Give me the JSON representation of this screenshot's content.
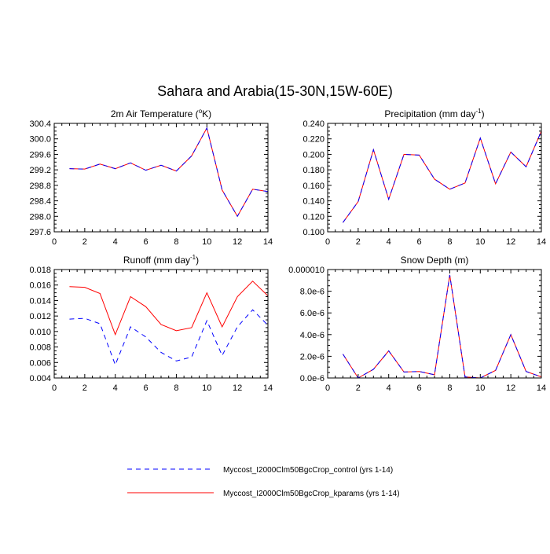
{
  "figure": {
    "title": "Sahara and Arabia(15-30N,15W-60E)"
  },
  "legend": {
    "placement": "bottom",
    "entries": [
      {
        "label": "Myccost_I2000Clm50BgcCrop_control (yrs 1-14)",
        "color": "#0000ff",
        "style": "dashed"
      },
      {
        "label": "Myccost_I2000Clm50BgcCrop_kparams (yrs 1-14)",
        "color": "#ff0000",
        "style": "solid"
      }
    ]
  },
  "chart_data": [
    {
      "type": "line",
      "title": "2m Air Temperature (",
      "title_sup": "o",
      "title_tail": "K)",
      "xlim": [
        0,
        14
      ],
      "ylim": [
        297.6,
        300.4
      ],
      "xticks": [
        0,
        2,
        4,
        6,
        8,
        10,
        12,
        14
      ],
      "yticks": [
        297.6,
        298.0,
        298.4,
        298.8,
        299.2,
        299.6,
        300.0,
        300.4
      ],
      "ytick_labels": [
        "297.6",
        "298.0",
        "298.4",
        "298.8",
        "299.2",
        "299.6",
        "300.0",
        "300.4"
      ],
      "x": [
        1,
        2,
        3,
        4,
        5,
        6,
        7,
        8,
        9,
        10,
        11,
        12,
        13,
        14
      ],
      "series": [
        {
          "legend_index": 0,
          "values": [
            299.23,
            299.22,
            299.35,
            299.23,
            299.38,
            299.19,
            299.32,
            299.17,
            299.56,
            300.28,
            298.68,
            298.0,
            298.7,
            298.64
          ]
        },
        {
          "legend_index": 1,
          "values": [
            299.23,
            299.22,
            299.35,
            299.23,
            299.38,
            299.19,
            299.32,
            299.17,
            299.56,
            300.28,
            298.68,
            298.0,
            298.7,
            298.64
          ]
        }
      ]
    },
    {
      "type": "line",
      "title": "Precipitation (mm day",
      "title_sup": "-1",
      "title_tail": ")",
      "xlim": [
        0,
        14
      ],
      "ylim": [
        0.1,
        0.24
      ],
      "xticks": [
        0,
        2,
        4,
        6,
        8,
        10,
        12,
        14
      ],
      "yticks": [
        0.1,
        0.12,
        0.14,
        0.16,
        0.18,
        0.2,
        0.22,
        0.24
      ],
      "ytick_labels": [
        "0.100",
        "0.120",
        "0.140",
        "0.160",
        "0.180",
        "0.200",
        "0.220",
        "0.240"
      ],
      "x": [
        1,
        2,
        3,
        4,
        5,
        6,
        7,
        8,
        9,
        10,
        11,
        12,
        13,
        14
      ],
      "series": [
        {
          "legend_index": 0,
          "values": [
            0.112,
            0.139,
            0.206,
            0.142,
            0.2,
            0.199,
            0.168,
            0.155,
            0.163,
            0.221,
            0.162,
            0.203,
            0.184,
            0.23
          ]
        },
        {
          "legend_index": 1,
          "values": [
            0.112,
            0.139,
            0.206,
            0.142,
            0.2,
            0.199,
            0.168,
            0.155,
            0.163,
            0.221,
            0.162,
            0.203,
            0.184,
            0.23
          ]
        }
      ]
    },
    {
      "type": "line",
      "title": "Runoff (mm day",
      "title_sup": "-1",
      "title_tail": ")",
      "xlim": [
        0,
        14
      ],
      "ylim": [
        0.004,
        0.018
      ],
      "xticks": [
        0,
        2,
        4,
        6,
        8,
        10,
        12,
        14
      ],
      "yticks": [
        0.004,
        0.006,
        0.008,
        0.01,
        0.012,
        0.014,
        0.016,
        0.018
      ],
      "ytick_labels": [
        "0.004",
        "0.006",
        "0.008",
        "0.010",
        "0.012",
        "0.014",
        "0.016",
        "0.018"
      ],
      "x": [
        1,
        2,
        3,
        4,
        5,
        6,
        7,
        8,
        9,
        10,
        11,
        12,
        13,
        14
      ],
      "series": [
        {
          "legend_index": 0,
          "values": [
            0.0116,
            0.0117,
            0.011,
            0.0057,
            0.0106,
            0.0093,
            0.0073,
            0.0062,
            0.0067,
            0.0114,
            0.0069,
            0.0106,
            0.0128,
            0.0108
          ]
        },
        {
          "legend_index": 1,
          "values": [
            0.0158,
            0.0157,
            0.0149,
            0.0096,
            0.0145,
            0.0132,
            0.0109,
            0.0101,
            0.0105,
            0.015,
            0.0106,
            0.0145,
            0.0165,
            0.0146
          ]
        }
      ]
    },
    {
      "type": "line",
      "title": "Snow Depth (m)",
      "title_sup": "",
      "title_tail": "",
      "xlim": [
        0,
        14
      ],
      "ylim": [
        0,
        1e-05
      ],
      "xticks": [
        0,
        2,
        4,
        6,
        8,
        10,
        12,
        14
      ],
      "yticks": [
        0,
        2e-06,
        4e-06,
        6e-06,
        8e-06,
        1e-05
      ],
      "ytick_labels": [
        "0.0e-6",
        "2.0e-6",
        "4.0e-6",
        "6.0e-6",
        "8.0e-6",
        "0.000010"
      ],
      "x": [
        1,
        2,
        3,
        4,
        5,
        6,
        7,
        8,
        9,
        10,
        11,
        12,
        13,
        14
      ],
      "series": [
        {
          "legend_index": 0,
          "values": [
            2.2e-06,
            0.0,
            8e-07,
            2.5e-06,
            5.5e-07,
            6e-07,
            3e-07,
            9.5e-06,
            1e-07,
            0.0,
            7e-07,
            4e-06,
            6e-07,
            1e-07
          ]
        },
        {
          "legend_index": 1,
          "values": [
            2.2e-06,
            0.0,
            8e-07,
            2.5e-06,
            5.5e-07,
            6e-07,
            3e-07,
            9.5e-06,
            1e-07,
            0.0,
            7e-07,
            4e-06,
            6e-07,
            1e-07
          ]
        }
      ]
    }
  ]
}
